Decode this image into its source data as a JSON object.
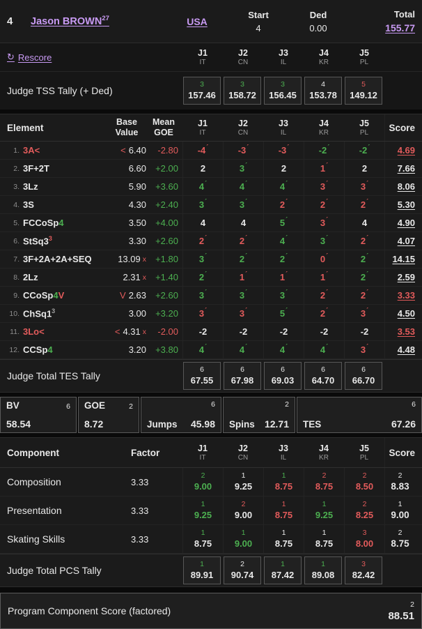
{
  "header": {
    "rank": "4",
    "name": "Jason BROWN",
    "age": "27",
    "nation": "USA",
    "start_label": "Start",
    "start_value": "4",
    "ded_label": "Ded",
    "ded_value": "0.00",
    "total_label": "Total",
    "total_value": "155.77"
  },
  "rescore_label": "Rescore",
  "judges": [
    {
      "id": "J1",
      "nation": "IT"
    },
    {
      "id": "J2",
      "nation": "CN"
    },
    {
      "id": "J3",
      "nation": "IL"
    },
    {
      "id": "J4",
      "nation": "KR"
    },
    {
      "id": "J5",
      "nation": "PL"
    }
  ],
  "tss_tally": {
    "label": "Judge TSS Tally (+ Ded)",
    "cells": [
      {
        "rank": "3",
        "rc": "g",
        "value": "157.46"
      },
      {
        "rank": "3",
        "rc": "g",
        "value": "158.72"
      },
      {
        "rank": "3",
        "rc": "g",
        "value": "156.45"
      },
      {
        "rank": "4",
        "rc": "w",
        "value": "153.78"
      },
      {
        "rank": "5",
        "rc": "r",
        "value": "149.12"
      }
    ]
  },
  "elements_table": {
    "element_header": "Element",
    "base_header": [
      "Base",
      "Value"
    ],
    "mean_header": [
      "Mean",
      "GOE"
    ],
    "score_header": "Score",
    "rows": [
      {
        "num": "1.",
        "name": [
          [
            "3A<",
            "r"
          ]
        ],
        "bp": "<",
        "base": "6.40",
        "x": "",
        "mean": "-2.80",
        "mc": "r",
        "goes": [
          [
            "-4",
            "r"
          ],
          [
            "-3",
            "r"
          ],
          [
            "-3",
            "r"
          ],
          [
            "-2",
            "g"
          ],
          [
            "-2",
            "g"
          ]
        ],
        "score": "4.69",
        "sc": "r"
      },
      {
        "num": "2.",
        "name": [
          [
            "3F+2T",
            "w"
          ]
        ],
        "bp": "",
        "base": "6.60",
        "x": "",
        "mean": "+2.00",
        "mc": "g",
        "goes": [
          [
            "2",
            "w"
          ],
          [
            "3",
            "g"
          ],
          [
            "2",
            "w"
          ],
          [
            "1",
            "r"
          ],
          [
            "2",
            "w"
          ]
        ],
        "score": "7.66",
        "sc": "w"
      },
      {
        "num": "3.",
        "name": [
          [
            "3Lz",
            "w"
          ]
        ],
        "bp": "",
        "base": "5.90",
        "x": "",
        "mean": "+3.60",
        "mc": "g",
        "goes": [
          [
            "4",
            "g"
          ],
          [
            "4",
            "g"
          ],
          [
            "4",
            "g"
          ],
          [
            "3",
            "r"
          ],
          [
            "3",
            "r"
          ]
        ],
        "score": "8.06",
        "sc": "w"
      },
      {
        "num": "4.",
        "name": [
          [
            "3S",
            "w"
          ]
        ],
        "bp": "",
        "base": "4.30",
        "x": "",
        "mean": "+2.40",
        "mc": "g",
        "goes": [
          [
            "3",
            "g"
          ],
          [
            "3",
            "g"
          ],
          [
            "2",
            "r"
          ],
          [
            "2",
            "r"
          ],
          [
            "2",
            "r"
          ]
        ],
        "score": "5.30",
        "sc": "w"
      },
      {
        "num": "5.",
        "name": [
          [
            "FCCoSp",
            "w"
          ],
          [
            "4",
            "g"
          ]
        ],
        "bp": "",
        "base": "3.50",
        "x": "",
        "mean": "+4.00",
        "mc": "g",
        "goes": [
          [
            "4",
            "w"
          ],
          [
            "4",
            "w"
          ],
          [
            "5",
            "g"
          ],
          [
            "3",
            "r"
          ],
          [
            "4",
            "w"
          ]
        ],
        "score": "4.90",
        "sc": "w"
      },
      {
        "num": "6.",
        "name": [
          [
            "StSq3",
            "w"
          ],
          [
            "3",
            "r",
            "sup"
          ]
        ],
        "bp": "",
        "base": "3.30",
        "x": "",
        "mean": "+2.60",
        "mc": "g",
        "goes": [
          [
            "2",
            "r"
          ],
          [
            "2",
            "r"
          ],
          [
            "4",
            "g"
          ],
          [
            "3",
            "g"
          ],
          [
            "2",
            "r"
          ]
        ],
        "score": "4.07",
        "sc": "w"
      },
      {
        "num": "7.",
        "name": [
          [
            "3F+2A+2A+SEQ",
            "w"
          ]
        ],
        "bp": "",
        "base": "13.09",
        "x": "x",
        "mean": "+1.80",
        "mc": "g",
        "goes": [
          [
            "3",
            "g"
          ],
          [
            "2",
            "g"
          ],
          [
            "2",
            "g"
          ],
          [
            "0",
            "r"
          ],
          [
            "2",
            "g"
          ]
        ],
        "score": "14.15",
        "sc": "w"
      },
      {
        "num": "8.",
        "name": [
          [
            "2Lz",
            "w"
          ]
        ],
        "bp": "",
        "base": "2.31",
        "x": "x",
        "mean": "+1.40",
        "mc": "g",
        "goes": [
          [
            "2",
            "g"
          ],
          [
            "1",
            "r"
          ],
          [
            "1",
            "r"
          ],
          [
            "1",
            "r"
          ],
          [
            "2",
            "g"
          ]
        ],
        "score": "2.59",
        "sc": "w"
      },
      {
        "num": "9.",
        "name": [
          [
            "CCoSp",
            "w"
          ],
          [
            "4",
            "g"
          ],
          [
            "V",
            "r"
          ]
        ],
        "bp": "V",
        "base": "2.63",
        "x": "",
        "mean": "+2.60",
        "mc": "g",
        "goes": [
          [
            "3",
            "g"
          ],
          [
            "3",
            "g"
          ],
          [
            "3",
            "g"
          ],
          [
            "2",
            "r"
          ],
          [
            "2",
            "r"
          ]
        ],
        "score": "3.33",
        "sc": "r"
      },
      {
        "num": "10.",
        "name": [
          [
            "ChSq1",
            "w"
          ],
          [
            "3",
            "m",
            "sup"
          ]
        ],
        "bp": "",
        "base": "3.00",
        "x": "",
        "mean": "+3.20",
        "mc": "g",
        "goes": [
          [
            "3",
            "r"
          ],
          [
            "3",
            "r"
          ],
          [
            "5",
            "g"
          ],
          [
            "2",
            "r"
          ],
          [
            "3",
            "r"
          ]
        ],
        "score": "4.50",
        "sc": "w"
      },
      {
        "num": "11.",
        "name": [
          [
            "3Lo<",
            "r"
          ]
        ],
        "bp": "<",
        "base": "4.31",
        "x": "x",
        "mean": "-2.00",
        "mc": "r",
        "goes": [
          [
            "-2",
            "w"
          ],
          [
            "-2",
            "w"
          ],
          [
            "-2",
            "w"
          ],
          [
            "-2",
            "w"
          ],
          [
            "-2",
            "w"
          ]
        ],
        "score": "3.53",
        "sc": "r"
      },
      {
        "num": "12.",
        "name": [
          [
            "CCSp",
            "w"
          ],
          [
            "4",
            "g"
          ]
        ],
        "bp": "",
        "base": "3.20",
        "x": "",
        "mean": "+3.80",
        "mc": "g",
        "goes": [
          [
            "4",
            "g"
          ],
          [
            "4",
            "g"
          ],
          [
            "4",
            "g"
          ],
          [
            "4",
            "g"
          ],
          [
            "3",
            "r"
          ]
        ],
        "score": "4.48",
        "sc": "w"
      }
    ],
    "tally": {
      "label": "Judge Total TES Tally",
      "cells": [
        {
          "rank": "6",
          "rc": "w",
          "value": "67.55"
        },
        {
          "rank": "6",
          "rc": "w",
          "value": "67.98"
        },
        {
          "rank": "6",
          "rc": "w",
          "value": "69.03"
        },
        {
          "rank": "6",
          "rc": "w",
          "value": "64.70"
        },
        {
          "rank": "6",
          "rc": "w",
          "value": "66.70"
        }
      ]
    }
  },
  "summary_boxes": [
    {
      "label": "BV",
      "rank": "6",
      "value": "58.54",
      "layout": "stacked"
    },
    {
      "label": "GOE",
      "rank": "2",
      "value": "8.72",
      "layout": "stacked"
    },
    {
      "label": "Jumps",
      "rank": "6",
      "value": "45.98",
      "layout": "inline"
    },
    {
      "label": "Spins",
      "rank": "2",
      "value": "12.71",
      "layout": "inline"
    },
    {
      "label": "TES",
      "rank": "6",
      "value": "67.26",
      "layout": "inline"
    }
  ],
  "pcs_table": {
    "component_header": "Component",
    "factor_header": "Factor",
    "score_header": "Score",
    "rows": [
      {
        "name": "Composition",
        "factor": "3.33",
        "cells": [
          [
            "2",
            "g",
            "9.00",
            "g"
          ],
          [
            "1",
            "w",
            "9.25",
            "w"
          ],
          [
            "1",
            "g",
            "8.75",
            "r"
          ],
          [
            "2",
            "r",
            "8.75",
            "r"
          ],
          [
            "2",
            "r",
            "8.50",
            "r"
          ]
        ],
        "score_rank": "2",
        "score_value": "8.83"
      },
      {
        "name": "Presentation",
        "factor": "3.33",
        "cells": [
          [
            "1",
            "g",
            "9.25",
            "g"
          ],
          [
            "2",
            "r",
            "9.00",
            "w"
          ],
          [
            "1",
            "r",
            "8.75",
            "r"
          ],
          [
            "1",
            "g",
            "9.25",
            "g"
          ],
          [
            "2",
            "r",
            "8.25",
            "r"
          ]
        ],
        "score_rank": "1",
        "score_value": "9.00"
      },
      {
        "name": "Skating Skills",
        "factor": "3.33",
        "cells": [
          [
            "1",
            "g",
            "8.75",
            "w"
          ],
          [
            "1",
            "g",
            "9.00",
            "g"
          ],
          [
            "1",
            "w",
            "8.75",
            "w"
          ],
          [
            "1",
            "w",
            "8.75",
            "w"
          ],
          [
            "3",
            "r",
            "8.00",
            "r"
          ]
        ],
        "score_rank": "2",
        "score_value": "8.75"
      }
    ],
    "tally": {
      "label": "Judge Total PCS Tally",
      "cells": [
        {
          "rank": "1",
          "rc": "g",
          "value": "89.91"
        },
        {
          "rank": "2",
          "rc": "w",
          "value": "90.74"
        },
        {
          "rank": "1",
          "rc": "g",
          "value": "87.42"
        },
        {
          "rank": "1",
          "rc": "g",
          "value": "89.08"
        },
        {
          "rank": "3",
          "rc": "r",
          "value": "82.42"
        }
      ]
    }
  },
  "footer": {
    "label": "Program Component Score (factored)",
    "rank": "2",
    "value": "88.51"
  }
}
